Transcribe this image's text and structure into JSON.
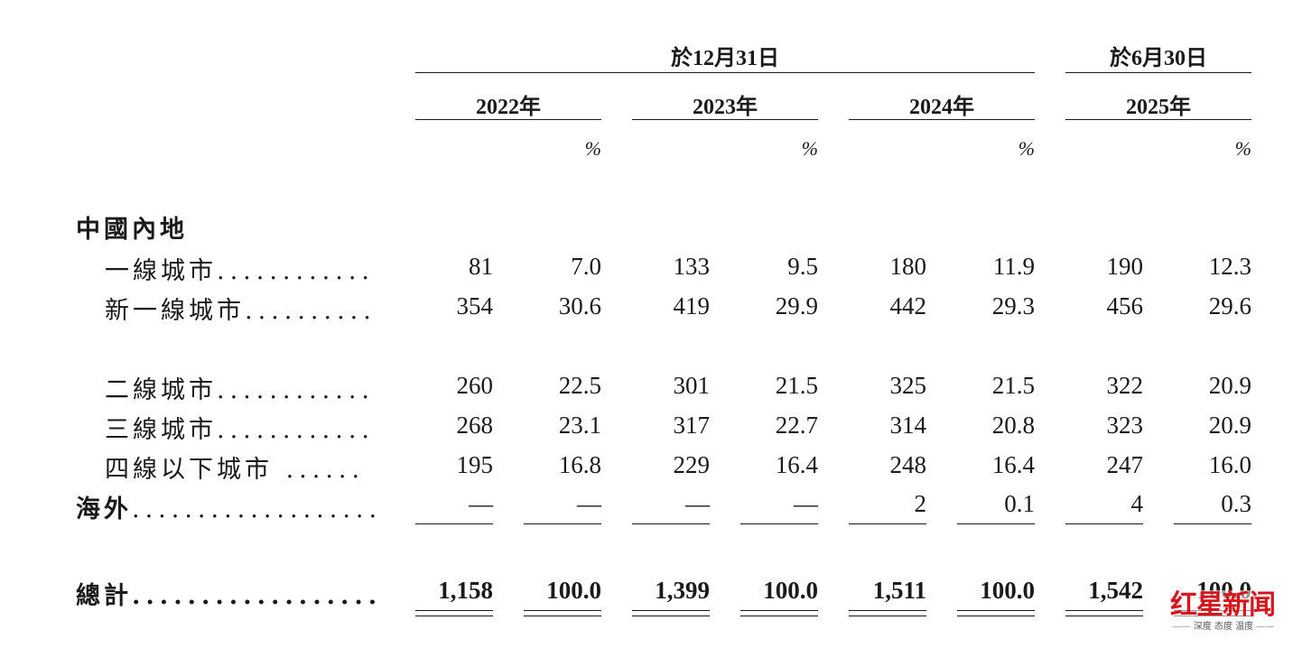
{
  "header": {
    "period_dec": "於12月31日",
    "period_jun": "於6月30日",
    "years": [
      "2022年",
      "2023年",
      "2024年",
      "2025年"
    ],
    "pct_symbol": "%"
  },
  "section_mainland": "中國內地",
  "rows": [
    {
      "label": "一線城市",
      "dots": "............",
      "values": [
        "81",
        "7.0",
        "133",
        "9.5",
        "180",
        "11.9",
        "190",
        "12.3"
      ]
    },
    {
      "label": "新一線城市",
      "dots": "..........",
      "values": [
        "354",
        "30.6",
        "419",
        "29.9",
        "442",
        "29.3",
        "456",
        "29.6"
      ]
    },
    {
      "label": "二線城市",
      "dots": "............",
      "values": [
        "260",
        "22.5",
        "301",
        "21.5",
        "325",
        "21.5",
        "322",
        "20.9"
      ]
    },
    {
      "label": "三線城市",
      "dots": "............",
      "values": [
        "268",
        "23.1",
        "317",
        "22.7",
        "314",
        "20.8",
        "323",
        "20.9"
      ]
    },
    {
      "label": "四線以下城市",
      "dots": " ......",
      "values": [
        "195",
        "16.8",
        "229",
        "16.4",
        "248",
        "16.4",
        "247",
        "16.0"
      ]
    }
  ],
  "overseas": {
    "label": "海外",
    "dots": "...................",
    "values": [
      "—",
      "—",
      "—",
      "—",
      "2",
      "0.1",
      "4",
      "0.3"
    ]
  },
  "total": {
    "label": "總計",
    "dots": "..................",
    "values": [
      "1,158",
      "100.0",
      "1,399",
      "100.0",
      "1,511",
      "100.0",
      "1,542",
      "100.0"
    ]
  },
  "watermark": {
    "main": "红星新闻",
    "sub": "深度 态度 温度"
  }
}
